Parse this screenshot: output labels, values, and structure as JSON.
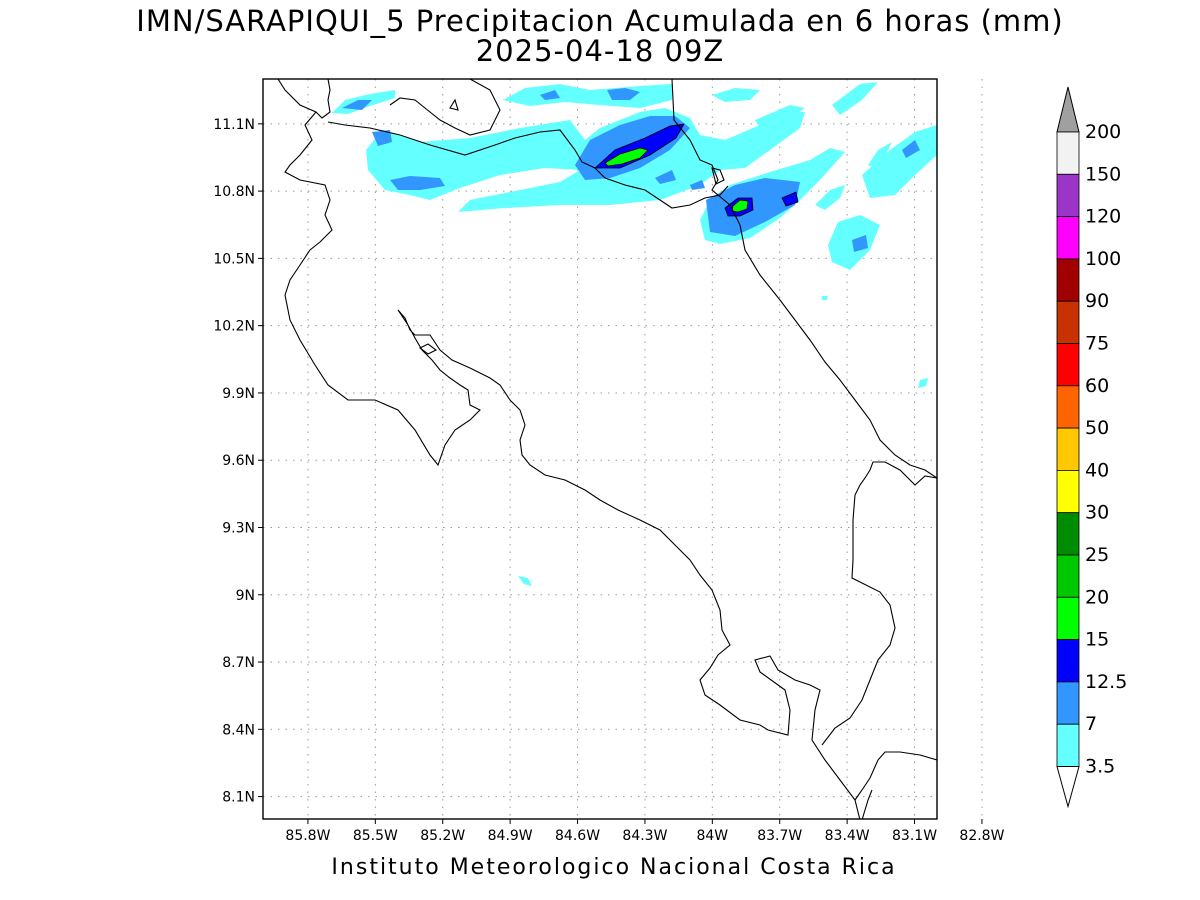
{
  "header": {
    "title": "IMN/SARAPIQUI_5 Precipitacion Acumulada en 6 horas (mm)",
    "subtitle": "2025-04-18 09Z"
  },
  "footer": {
    "text": "Instituto Meteorologico Nacional Costa Rica"
  },
  "map": {
    "lat_range": [
      8.0,
      11.3
    ],
    "lon_range": [
      -86.0,
      -83.0
    ],
    "lat_ticks": [
      {
        "value": 11.1,
        "label": "11.1N"
      },
      {
        "value": 10.8,
        "label": "10.8N"
      },
      {
        "value": 10.5,
        "label": "10.5N"
      },
      {
        "value": 10.2,
        "label": "10.2N"
      },
      {
        "value": 9.9,
        "label": "9.9N"
      },
      {
        "value": 9.6,
        "label": "9.6N"
      },
      {
        "value": 9.3,
        "label": "9.3N"
      },
      {
        "value": 9.0,
        "label": "9N"
      },
      {
        "value": 8.7,
        "label": "8.7N"
      },
      {
        "value": 8.4,
        "label": "8.4N"
      },
      {
        "value": 8.1,
        "label": "8.1N"
      }
    ],
    "lon_ticks": [
      {
        "value": -85.8,
        "label": "85.8W"
      },
      {
        "value": -85.5,
        "label": "85.5W"
      },
      {
        "value": -85.2,
        "label": "85.2W"
      },
      {
        "value": -84.9,
        "label": "84.9W"
      },
      {
        "value": -84.6,
        "label": "84.6W"
      },
      {
        "value": -84.3,
        "label": "84.3W"
      },
      {
        "value": -84.0,
        "label": "84W"
      },
      {
        "value": -83.7,
        "label": "83.7W"
      },
      {
        "value": -83.4,
        "label": "83.4W"
      },
      {
        "value": -83.1,
        "label": "83.1W"
      },
      {
        "value": -82.8,
        "label": "82.8W"
      }
    ],
    "gridlines": "dotted"
  },
  "legend": {
    "units": "mm",
    "arrow_top_color": "#a0a0a0",
    "arrow_bottom_color": "#ffffff",
    "bins": [
      {
        "label": "200",
        "color": "#f2f2f2"
      },
      {
        "label": "150",
        "color": "#9b35c8"
      },
      {
        "label": "120",
        "color": "#ff00ff"
      },
      {
        "label": "100",
        "color": "#a00000"
      },
      {
        "label": "90",
        "color": "#c83200"
      },
      {
        "label": "75",
        "color": "#ff0000"
      },
      {
        "label": "60",
        "color": "#ff6400"
      },
      {
        "label": "50",
        "color": "#ffc800"
      },
      {
        "label": "40",
        "color": "#ffff00"
      },
      {
        "label": "30",
        "color": "#008c00"
      },
      {
        "label": "25",
        "color": "#00c800"
      },
      {
        "label": "20",
        "color": "#00ff00"
      },
      {
        "label": "15",
        "color": "#0000ff"
      },
      {
        "label": "12.5",
        "color": "#3296ff"
      },
      {
        "label": "7",
        "color": "#64ffff"
      },
      {
        "label": "3.5",
        "color": "#ffffff"
      }
    ]
  },
  "precip_colors": {
    "light": "#64ffff",
    "moderate": "#3296ff",
    "heavy": "#0000ff",
    "very_heavy": "#00ff00"
  }
}
